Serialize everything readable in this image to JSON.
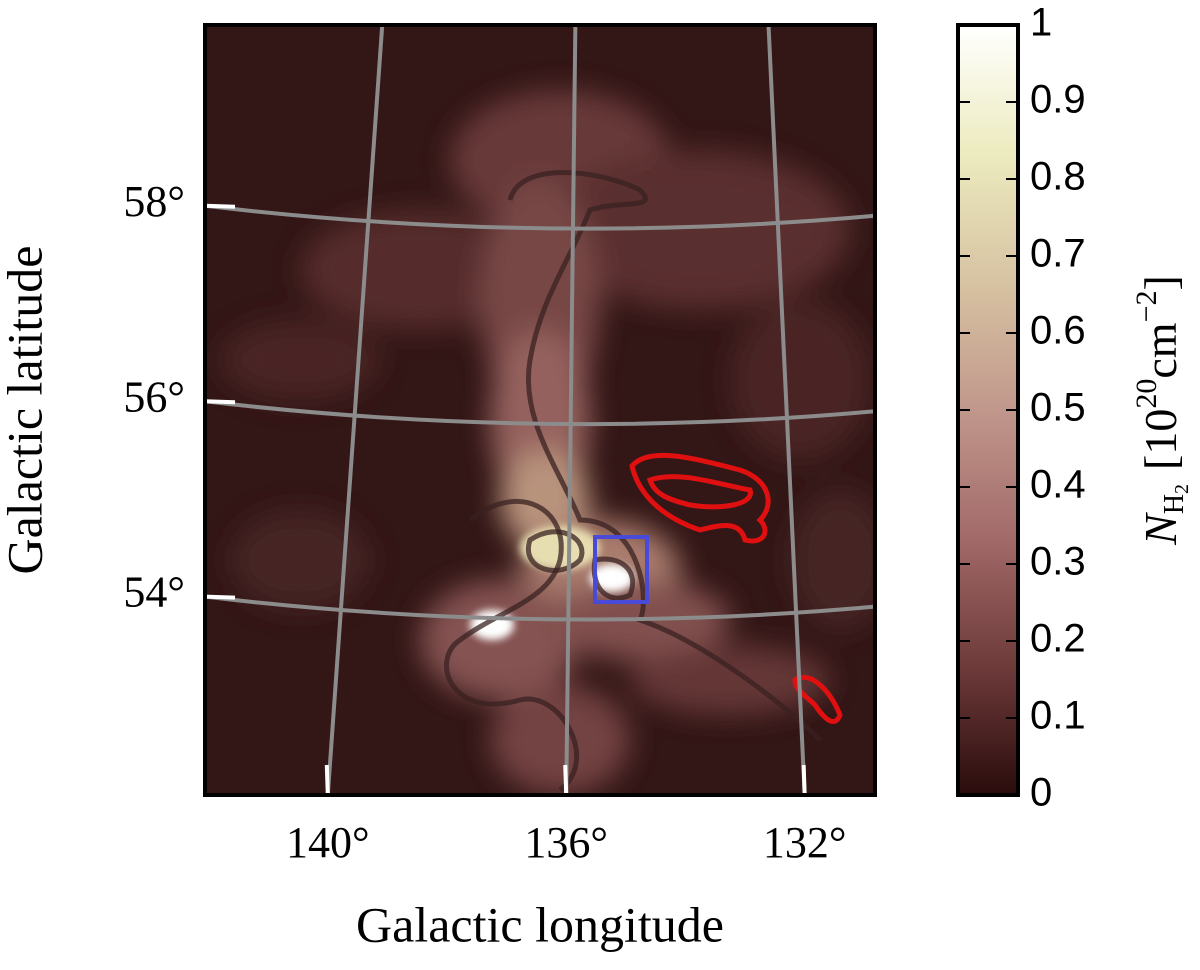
{
  "chart_data": {
    "type": "map",
    "xlabel": "Galactic longitude",
    "ylabel": "Galactic latitude",
    "xlim": [
      142.06,
      130.82
    ],
    "ylim": [
      51.97,
      59.85
    ],
    "xticks": [
      {
        "value": 140,
        "label": "140°"
      },
      {
        "value": 136,
        "label": "136°"
      },
      {
        "value": 132,
        "label": "132°"
      }
    ],
    "yticks": [
      {
        "value": 58,
        "label": "58°"
      },
      {
        "value": 56,
        "label": "56°"
      },
      {
        "value": 54,
        "label": "54°"
      }
    ],
    "grid": true,
    "grid_color": "#8c8c8c",
    "colorbar": {
      "lim": [
        0,
        1
      ],
      "ticks": [
        0,
        0.1,
        0.2,
        0.3,
        0.4,
        0.5,
        0.6,
        0.7,
        0.8,
        0.9,
        1
      ],
      "colors": [
        "#2a0c0c",
        "#6e3a3a",
        "#a26a69",
        "#c1978c",
        "#d7c3a2",
        "#ecebbf",
        "#ffffff"
      ],
      "label": {
        "symbol": "N",
        "subscript": "H",
        "subsubscript": "2",
        "open": "[10",
        "exponent": "20",
        "unit": "cm",
        "unit_exponent": "−2",
        "close": "]"
      }
    }
  }
}
